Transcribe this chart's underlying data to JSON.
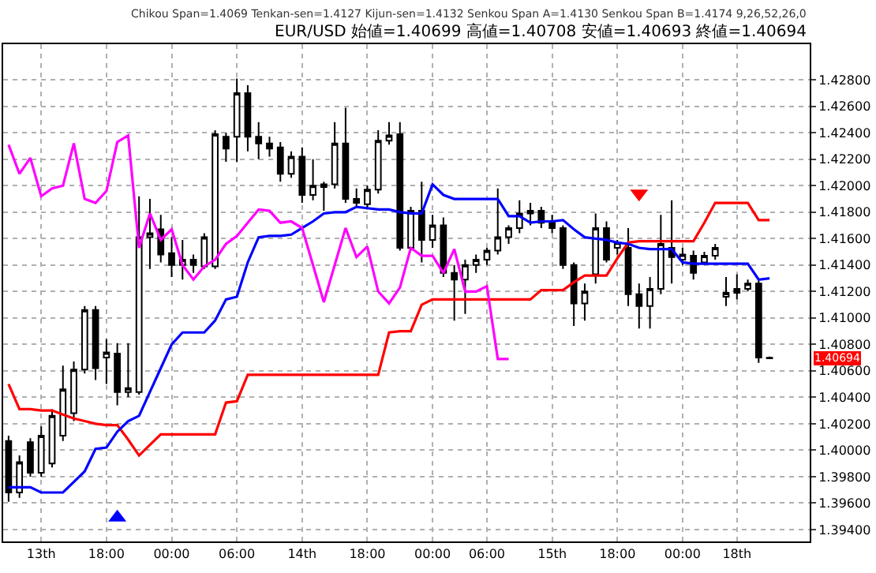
{
  "chart_data": {
    "type": "candlestick",
    "categories": [
      null,
      null,
      null,
      "13th",
      null,
      null,
      null,
      null,
      null,
      "18:00",
      null,
      null,
      null,
      null,
      null,
      "00:00",
      null,
      null,
      null,
      null,
      null,
      "06:00",
      null,
      null,
      null,
      null,
      null,
      "14th",
      null,
      null,
      null,
      null,
      null,
      "18:00",
      null,
      null,
      null,
      null,
      null,
      "00:00",
      null,
      null,
      null,
      null,
      "06:00",
      null,
      null,
      null,
      null,
      null,
      "15th",
      null,
      null,
      null,
      null,
      null,
      "18:00",
      null,
      null,
      null,
      null,
      null,
      "00:00",
      null,
      null,
      null,
      null,
      "18th",
      null,
      null,
      null
    ],
    "ohlc": [
      [
        1.4007,
        1.4011,
        1.3961,
        1.3968
      ],
      [
        1.3968,
        1.3996,
        1.3964,
        1.3991
      ],
      [
        1.4006,
        1.4009,
        1.398,
        1.3983
      ],
      [
        1.3983,
        1.4018,
        1.398,
        1.4011
      ],
      [
        1.399,
        1.4031,
        1.3987,
        1.4026
      ],
      [
        1.4011,
        1.4064,
        1.4007,
        1.4046
      ],
      [
        1.4028,
        1.4067,
        1.4022,
        1.4061
      ],
      [
        1.4061,
        1.4109,
        1.4058,
        1.4106
      ],
      [
        1.4106,
        1.4109,
        1.4053,
        1.4062
      ],
      [
        1.407,
        1.4084,
        1.405,
        1.4074
      ],
      [
        1.4073,
        1.4081,
        1.4034,
        1.4044
      ],
      [
        1.4044,
        1.4081,
        1.404,
        1.4047
      ],
      [
        1.4044,
        1.4192,
        1.4042,
        1.4161
      ],
      [
        1.4161,
        1.419,
        1.4137,
        1.4164
      ],
      [
        1.4167,
        1.4178,
        1.4142,
        1.4148
      ],
      [
        1.4149,
        1.4161,
        1.4131,
        1.414
      ],
      [
        1.414,
        1.4159,
        1.4129,
        1.4144
      ],
      [
        1.4144,
        1.4148,
        1.4134,
        1.414
      ],
      [
        1.4139,
        1.4164,
        1.4137,
        1.4161
      ],
      [
        1.4139,
        1.4242,
        1.4137,
        1.4239
      ],
      [
        1.4237,
        1.424,
        1.4218,
        1.4228
      ],
      [
        1.4237,
        1.4281,
        1.4218,
        1.427
      ],
      [
        1.427,
        1.4276,
        1.4226,
        1.4237
      ],
      [
        1.4237,
        1.4248,
        1.422,
        1.4232
      ],
      [
        1.4232,
        1.4237,
        1.4222,
        1.4228
      ],
      [
        1.4229,
        1.4233,
        1.4203,
        1.4209
      ],
      [
        1.4209,
        1.4226,
        1.4206,
        1.4222
      ],
      [
        1.4222,
        1.4229,
        1.4187,
        1.4193
      ],
      [
        1.4193,
        1.422,
        1.4189,
        1.42
      ],
      [
        1.4199,
        1.4203,
        1.4181,
        1.4201
      ],
      [
        1.4201,
        1.4248,
        1.4198,
        1.4232
      ],
      [
        1.4232,
        1.4259,
        1.4187,
        1.419
      ],
      [
        1.419,
        1.4198,
        1.4183,
        1.4187
      ],
      [
        1.4186,
        1.42,
        1.4183,
        1.4197
      ],
      [
        1.4197,
        1.4242,
        1.4194,
        1.4234
      ],
      [
        1.4234,
        1.4248,
        1.4231,
        1.4238
      ],
      [
        1.4239,
        1.4248,
        1.4151,
        1.4153
      ],
      [
        1.4153,
        1.4184,
        1.4151,
        1.4181
      ],
      [
        1.4181,
        1.4203,
        1.4142,
        1.4159
      ],
      [
        1.4159,
        1.4178,
        1.4153,
        1.417
      ],
      [
        1.417,
        1.4176,
        1.4131,
        1.4134
      ],
      [
        1.4134,
        1.414,
        1.4098,
        1.4129
      ],
      [
        1.4129,
        1.4144,
        1.4103,
        1.414
      ],
      [
        1.414,
        1.4148,
        1.4134,
        1.4144
      ],
      [
        1.4144,
        1.4153,
        1.414,
        1.4151
      ],
      [
        1.4151,
        1.4198,
        1.4148,
        1.4161
      ],
      [
        1.4161,
        1.417,
        1.4156,
        1.4168
      ],
      [
        1.4168,
        1.4189,
        1.4164,
        1.4179
      ],
      [
        1.4179,
        1.4187,
        1.417,
        1.4181
      ],
      [
        1.4181,
        1.4184,
        1.4168,
        1.4172
      ],
      [
        1.4173,
        1.4178,
        1.4164,
        1.4168
      ],
      [
        1.4168,
        1.417,
        1.4137,
        1.414
      ],
      [
        1.414,
        1.4142,
        1.4094,
        1.4111
      ],
      [
        1.4111,
        1.4126,
        1.4098,
        1.412
      ],
      [
        1.4133,
        1.4179,
        1.4126,
        1.4168
      ],
      [
        1.4168,
        1.4173,
        1.4142,
        1.4144
      ],
      [
        1.4153,
        1.4159,
        1.4148,
        1.4157
      ],
      [
        1.4153,
        1.4168,
        1.4109,
        1.4118
      ],
      [
        1.4118,
        1.4126,
        1.4092,
        1.4109
      ],
      [
        1.4109,
        1.4131,
        1.4092,
        1.4122
      ],
      [
        1.4122,
        1.4178,
        1.4118,
        1.4156
      ],
      [
        1.4153,
        1.4189,
        1.4126,
        1.4146
      ],
      [
        1.4144,
        1.4153,
        1.414,
        1.4148
      ],
      [
        1.4147,
        1.4151,
        1.4129,
        1.4134
      ],
      [
        1.4142,
        1.415,
        1.414,
        1.4147
      ],
      [
        1.4147,
        1.4156,
        1.4144,
        1.4153
      ],
      [
        1.4116,
        1.4131,
        1.4109,
        1.4119
      ],
      [
        1.4122,
        1.4133,
        1.4114,
        1.4119
      ],
      [
        1.4122,
        1.4129,
        1.412,
        1.4126
      ],
      [
        1.4126,
        1.4128,
        1.4066,
        1.407
      ],
      [
        1.40699,
        1.40708,
        1.40693,
        1.40694
      ]
    ],
    "series": [
      {
        "type": "line",
        "color": "#ff0000",
        "values": [
          1.405,
          1.4031,
          1.4031,
          1.403,
          1.403,
          1.4027,
          1.4024,
          1.4022,
          1.402,
          1.4019,
          1.4019,
          1.4008,
          1.3996,
          1.4004,
          1.4012,
          1.4012,
          1.4012,
          1.4012,
          1.4012,
          1.4012,
          1.4036,
          1.4037,
          1.4057,
          1.4057,
          1.4057,
          1.4057,
          1.4057,
          1.4057,
          1.4057,
          1.4057,
          1.4057,
          1.4057,
          1.4057,
          1.4057,
          1.4057,
          1.4089,
          1.409,
          1.409,
          1.411,
          1.4114,
          1.4114,
          1.4114,
          1.4114,
          1.4114,
          1.4114,
          1.4114,
          1.4114,
          1.4114,
          1.4114,
          1.4121,
          1.4121,
          1.4121,
          1.4127,
          1.4132,
          1.4132,
          1.4132,
          1.4145,
          1.4157,
          1.4158,
          1.4158,
          1.4158,
          1.4158,
          1.4158,
          1.4158,
          1.4172,
          1.4187,
          1.4187,
          1.4187,
          1.4187,
          1.4174,
          1.4174
        ]
      },
      {
        "type": "line",
        "color": "#0000ff",
        "values": [
          1.3972,
          1.3972,
          1.3972,
          1.3968,
          1.3968,
          1.3968,
          1.3976,
          1.3984,
          1.4001,
          1.4002,
          1.4014,
          1.4022,
          1.4026,
          1.4044,
          1.4062,
          1.408,
          1.4089,
          1.4089,
          1.4089,
          1.4098,
          1.4114,
          1.4116,
          1.4142,
          1.4161,
          1.4162,
          1.4162,
          1.4163,
          1.4168,
          1.4173,
          1.4179,
          1.418,
          1.418,
          1.4184,
          1.4183,
          1.4182,
          1.4182,
          1.418,
          1.4179,
          1.4179,
          1.4201,
          1.4193,
          1.419,
          1.419,
          1.419,
          1.419,
          1.419,
          1.4177,
          1.4177,
          1.4172,
          1.4173,
          1.4173,
          1.4174,
          1.4167,
          1.4161,
          1.416,
          1.4159,
          1.4157,
          1.4156,
          1.4153,
          1.4152,
          1.4152,
          1.4152,
          1.4142,
          1.4141,
          1.4141,
          1.4141,
          1.4141,
          1.4141,
          1.4141,
          1.4129,
          1.413
        ]
      },
      {
        "type": "line",
        "color": "#ff00ff",
        "values": [
          1.4231,
          1.4209,
          1.4221,
          1.4192,
          1.4198,
          1.42,
          1.4232,
          1.419,
          1.4187,
          1.4196,
          1.4233,
          1.4238,
          1.4153,
          1.4179,
          1.4159,
          1.4167,
          1.414,
          1.4129,
          1.4139,
          1.4144,
          1.4156,
          1.4162,
          1.4172,
          1.4182,
          1.4181,
          1.4172,
          1.4173,
          1.4168,
          1.414,
          1.4112,
          1.414,
          1.4168,
          1.4146,
          1.4154,
          1.412,
          1.4111,
          1.4123,
          1.4153,
          1.4147,
          1.4147,
          1.4134,
          1.4152,
          1.412,
          1.412,
          1.4124,
          1.4069,
          1.4069,
          null,
          null,
          null,
          null,
          null,
          null,
          null,
          null,
          null,
          null,
          null,
          null,
          null,
          null,
          null,
          null,
          null,
          null,
          null,
          null,
          null,
          null,
          null,
          null
        ]
      },
      {
        "type": "scatter",
        "color": "#0000ff",
        "marker": "triangle",
        "values": [
          null,
          null,
          null,
          null,
          null,
          null,
          null,
          null,
          null,
          null,
          1.3949,
          null,
          null,
          null,
          null,
          null,
          null,
          null,
          null,
          null,
          null,
          null,
          null,
          null,
          null,
          null,
          null,
          null,
          null,
          null,
          null,
          null,
          null,
          null,
          null,
          null,
          null,
          null,
          null,
          null,
          null,
          null,
          null,
          null,
          null,
          null,
          null,
          null,
          null,
          null,
          null,
          null,
          null,
          null,
          null,
          null,
          null,
          null,
          null,
          null,
          null,
          null,
          null,
          null,
          null,
          null,
          null,
          null,
          null,
          null,
          null
        ]
      },
      {
        "type": "scatter",
        "color": "#ff0000",
        "marker": "triangle",
        "values": [
          null,
          null,
          null,
          null,
          null,
          null,
          null,
          null,
          null,
          null,
          null,
          null,
          null,
          null,
          null,
          null,
          null,
          null,
          null,
          null,
          null,
          null,
          null,
          null,
          null,
          null,
          null,
          null,
          null,
          null,
          null,
          null,
          null,
          null,
          null,
          null,
          null,
          null,
          null,
          null,
          null,
          null,
          null,
          null,
          null,
          null,
          null,
          null,
          null,
          null,
          null,
          null,
          null,
          null,
          null,
          null,
          null,
          null,
          1.4194,
          null,
          null,
          null,
          null,
          null,
          null,
          null,
          null,
          null,
          null,
          null,
          null
        ]
      }
    ],
    "ylim": [
      1.3931,
      1.4307
    ],
    "yticks": [
      {
        "value": 1.428,
        "label": "1.42800"
      },
      {
        "value": 1.426,
        "label": "1.42600"
      },
      {
        "value": 1.424,
        "label": "1.42400"
      },
      {
        "value": 1.422,
        "label": "1.42200"
      },
      {
        "value": 1.42,
        "label": "1.42000"
      },
      {
        "value": 1.418,
        "label": "1.41800"
      },
      {
        "value": 1.416,
        "label": "1.41600"
      },
      {
        "value": 1.414,
        "label": "1.41400"
      },
      {
        "value": 1.412,
        "label": "1.41200"
      },
      {
        "value": 1.41,
        "label": "1.41000"
      },
      {
        "value": 1.408,
        "label": "1.40800"
      },
      {
        "value": 1.406,
        "label": "1.40600"
      },
      {
        "value": 1.404,
        "label": "1.40400"
      },
      {
        "value": 1.402,
        "label": "1.40200"
      },
      {
        "value": 1.4,
        "label": "1.40000"
      },
      {
        "value": 1.398,
        "label": "1.39800"
      },
      {
        "value": 1.396,
        "label": "1.39600"
      },
      {
        "value": 1.394,
        "label": "1.39400"
      }
    ],
    "grid": true,
    "line_style": "solid",
    "annotations": [
      "Chikou Span=1.4069",
      "Tenkan-sen=1.4127",
      "Kijun-sen=1.4132",
      "Senkou Span A=1.4130",
      "Senkou Span B=1.4174",
      "9,26,52,26,0",
      "EUR/USD 始値=1.40699 高値=1.40708 安値=1.40693 終値=1.40694",
      "1.40694"
    ]
  }
}
